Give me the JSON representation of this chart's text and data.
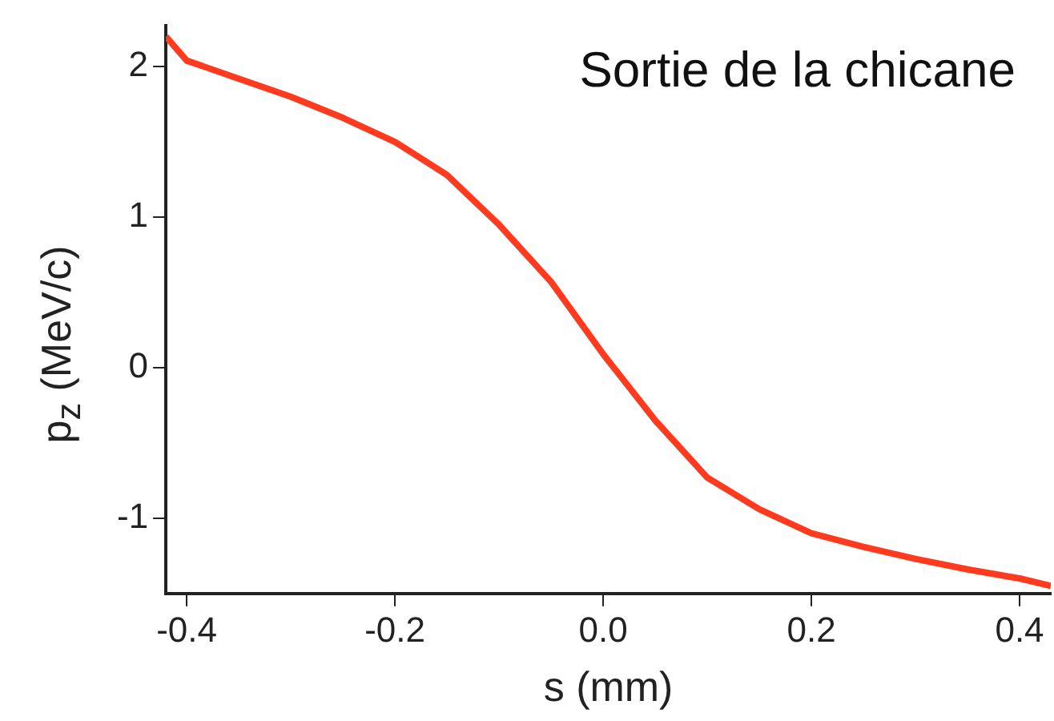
{
  "chart_data": {
    "type": "line",
    "xlabel": "s (mm)",
    "ylabel": "p$_{z}$  (MeV/c)",
    "annotations": [
      "Sortie de la chicane"
    ],
    "series": [
      {
        "color": "#ff3b1f",
        "x": [
          -0.42,
          -0.4,
          -0.35,
          -0.3,
          -0.25,
          -0.2,
          -0.15,
          -0.1,
          -0.05,
          0,
          0.05,
          0.1,
          0.15,
          0.2,
          0.25,
          0.3,
          0.35,
          0.4,
          0.43
        ],
        "values": [
          2.2,
          2.04,
          1.92,
          1.8,
          1.66,
          1.5,
          1.28,
          0.95,
          0.57,
          0.09,
          -0.35,
          -0.73,
          -0.94,
          -1.1,
          -1.19,
          -1.27,
          -1.34,
          -1.4,
          -1.45
        ]
      }
    ],
    "xlim": [
      -0.42,
      0.43
    ],
    "xticks": [
      {
        "value": -0.4,
        "label": "-0.4"
      },
      {
        "value": -0.2,
        "label": "-0.2"
      },
      {
        "value": 0,
        "label": "0.0"
      },
      {
        "value": 0.2,
        "label": "0.2"
      },
      {
        "value": 0.4,
        "label": "0.4"
      }
    ],
    "ylim": [
      -1.5,
      2.27
    ],
    "yticks": [
      -1,
      0,
      1,
      2
    ],
    "grid": false,
    "legend": false,
    "marker": "none",
    "line_style": "solid"
  }
}
